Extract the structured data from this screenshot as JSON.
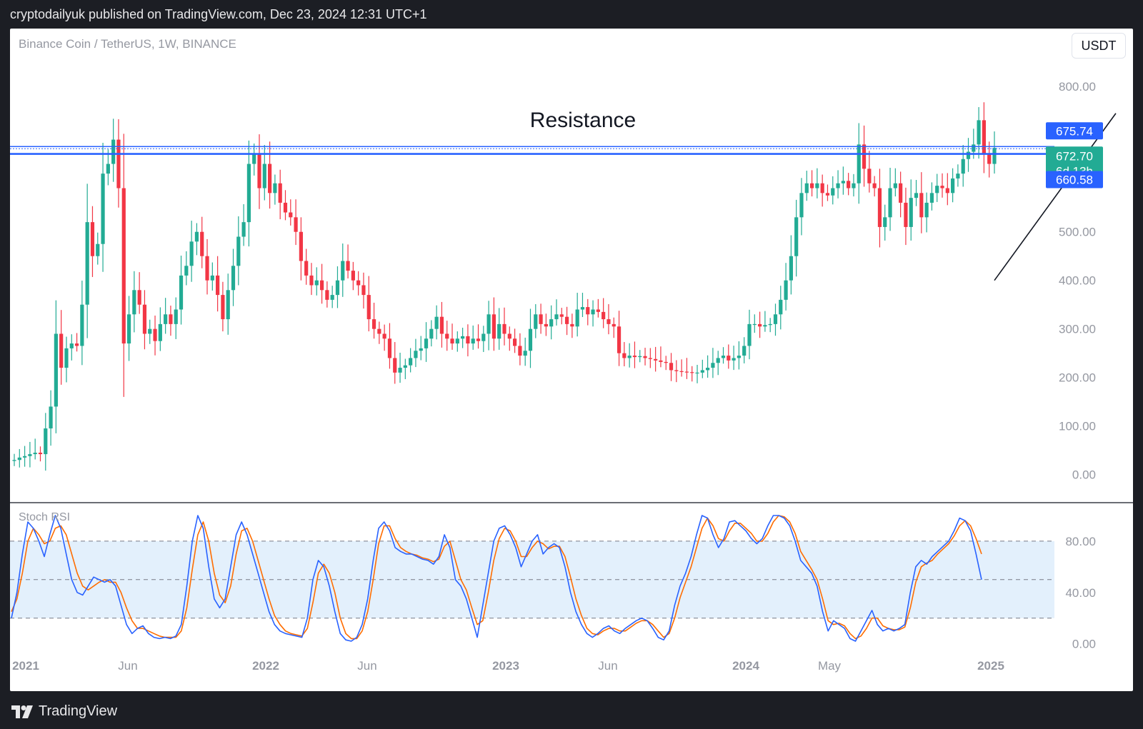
{
  "header": {
    "text": "cryptodailyuk published on TradingView.com, Dec 23, 2024 12:31 UTC+1"
  },
  "footer": {
    "brand": "TradingView"
  },
  "symbol": "Binance Coin / TetherUS, 1W, BINANCE",
  "currency": "USDT",
  "annotation": "Resistance",
  "price_tags": {
    "upper": "675.74",
    "current": "672.70",
    "countdown": "6d 13h",
    "lower": "660.58"
  },
  "stoch_label": "Stoch RSI",
  "colors": {
    "up": "#22ab94",
    "down": "#f23645",
    "resistance": "#2962ff",
    "k_line": "#2962ff",
    "d_line": "#ff6d00",
    "band_fill": "#e3f0fc",
    "tag_blue": "#2962ff",
    "tag_green": "#22ab94"
  },
  "chart_data": [
    {
      "type": "candlestick",
      "y_ticks": [
        "800.00",
        "500.00",
        "400.00",
        "300.00",
        "200.00",
        "100.00",
        "0.00"
      ],
      "ylim": [
        -55,
        860
      ],
      "x_ticks": [
        "2021",
        "Jun",
        "2022",
        "Jun",
        "2023",
        "Jun",
        "2024",
        "May",
        "2025"
      ],
      "resistance_levels": [
        675.74,
        660.58
      ],
      "trendline": {
        "from": [
          "2024-08-05",
          400
        ],
        "to": [
          "2024-12-23",
          703
        ]
      },
      "weekly_close": [
        30,
        35,
        38,
        42,
        45,
        42,
        95,
        140,
        290,
        220,
        260,
        270,
        265,
        350,
        520,
        450,
        475,
        620,
        640,
        690,
        590,
        270,
        330,
        380,
        350,
        290,
        300,
        275,
        310,
        330,
        310,
        340,
        410,
        430,
        480,
        500,
        450,
        400,
        410,
        370,
        320,
        380,
        430,
        490,
        520,
        640,
        660,
        590,
        640,
        580,
        600,
        560,
        540,
        530,
        500,
        440,
        410,
        390,
        400,
        380,
        360,
        370,
        400,
        440,
        420,
        400,
        390,
        370,
        320,
        300,
        290,
        280,
        240,
        210,
        220,
        225,
        240,
        255,
        260,
        280,
        300,
        325,
        290,
        280,
        270,
        280,
        285,
        270,
        280,
        275,
        290,
        330,
        280,
        310,
        290,
        280,
        265,
        245,
        255,
        300,
        330,
        310,
        305,
        320,
        330,
        325,
        310,
        305,
        340,
        345,
        330,
        340,
        335,
        320,
        310,
        305,
        250,
        240,
        245,
        242,
        244,
        240,
        238,
        235,
        232,
        230,
        215,
        213,
        212,
        211,
        210,
        210,
        215,
        220,
        230,
        240,
        245,
        235,
        240,
        245,
        265,
        310,
        310,
        305,
        308,
        310,
        330,
        360,
        400,
        450,
        530,
        580,
        600,
        590,
        600,
        580,
        575,
        590,
        600,
        605,
        590,
        600,
        680,
        630,
        600,
        590,
        510,
        530,
        590,
        600,
        560,
        510,
        570,
        580,
        530,
        560,
        580,
        595,
        590,
        580,
        610,
        620,
        650,
        665,
        680,
        730,
        660,
        640,
        673
      ]
    },
    {
      "type": "line",
      "title": "Stoch RSI",
      "y_ticks": [
        "80.00",
        "40.00",
        "0.00"
      ],
      "ylim": [
        -8,
        105
      ],
      "bands": [
        20,
        50,
        80
      ],
      "k": [
        20,
        40,
        70,
        95,
        90,
        80,
        68,
        85,
        100,
        90,
        70,
        50,
        40,
        38,
        45,
        52,
        50,
        48,
        50,
        45,
        30,
        15,
        8,
        12,
        14,
        8,
        5,
        4,
        5,
        4,
        6,
        15,
        45,
        80,
        100,
        90,
        60,
        35,
        28,
        35,
        60,
        85,
        95,
        85,
        70,
        55,
        40,
        25,
        15,
        10,
        8,
        7,
        6,
        5,
        20,
        50,
        65,
        60,
        45,
        25,
        8,
        3,
        2,
        5,
        15,
        35,
        65,
        90,
        95,
        88,
        75,
        72,
        70,
        70,
        68,
        66,
        65,
        62,
        68,
        85,
        75,
        50,
        45,
        35,
        20,
        5,
        30,
        55,
        80,
        90,
        92,
        85,
        75,
        60,
        70,
        80,
        85,
        70,
        75,
        78,
        75,
        60,
        40,
        25,
        15,
        8,
        5,
        8,
        12,
        14,
        10,
        8,
        12,
        15,
        18,
        20,
        18,
        12,
        5,
        3,
        10,
        30,
        45,
        55,
        68,
        85,
        100,
        98,
        85,
        75,
        82,
        95,
        96,
        92,
        88,
        82,
        78,
        82,
        92,
        100,
        100,
        98,
        92,
        80,
        65,
        60,
        55,
        45,
        25,
        10,
        18,
        15,
        12,
        4,
        2,
        10,
        18,
        26,
        15,
        10,
        12,
        10,
        12,
        15,
        40,
        60,
        65,
        62,
        68,
        72,
        76,
        80,
        88,
        98,
        96,
        88,
        70,
        50
      ],
      "d": [
        25,
        35,
        55,
        80,
        90,
        85,
        78,
        80,
        90,
        92,
        85,
        70,
        55,
        45,
        42,
        45,
        48,
        50,
        48,
        48,
        40,
        28,
        18,
        12,
        12,
        10,
        8,
        6,
        5,
        5,
        5,
        10,
        28,
        58,
        85,
        95,
        80,
        55,
        38,
        32,
        45,
        70,
        88,
        90,
        80,
        65,
        50,
        35,
        22,
        15,
        10,
        8,
        7,
        6,
        12,
        32,
        55,
        62,
        55,
        40,
        20,
        8,
        4,
        4,
        10,
        25,
        50,
        78,
        92,
        92,
        82,
        75,
        72,
        70,
        69,
        67,
        66,
        64,
        66,
        76,
        80,
        65,
        50,
        42,
        28,
        15,
        18,
        40,
        65,
        82,
        90,
        88,
        80,
        68,
        68,
        75,
        80,
        78,
        74,
        76,
        76,
        68,
        52,
        35,
        22,
        12,
        8,
        7,
        10,
        12,
        12,
        10,
        10,
        13,
        16,
        18,
        18,
        15,
        10,
        5,
        8,
        20,
        36,
        48,
        60,
        75,
        90,
        98,
        92,
        82,
        80,
        88,
        94,
        94,
        90,
        86,
        80,
        80,
        86,
        95,
        100,
        99,
        95,
        86,
        72,
        65,
        58,
        50,
        35,
        18,
        15,
        16,
        14,
        8,
        4,
        6,
        12,
        20,
        20,
        14,
        12,
        11,
        11,
        13,
        28,
        48,
        60,
        63,
        65,
        70,
        74,
        78,
        84,
        92,
        96,
        92,
        82,
        70
      ]
    }
  ]
}
